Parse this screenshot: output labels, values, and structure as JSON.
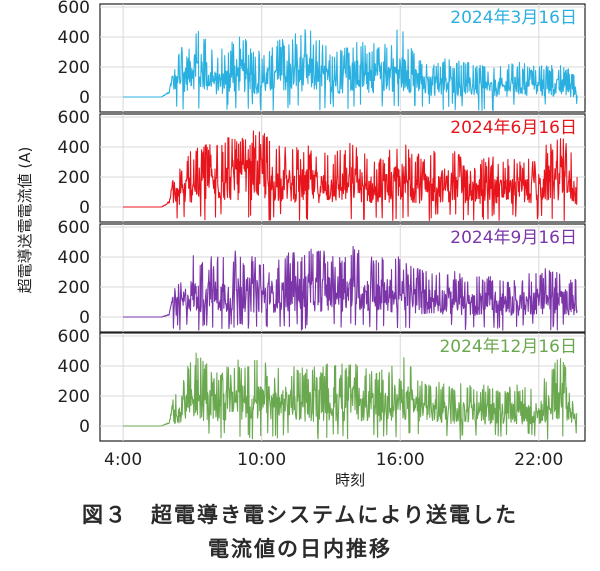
{
  "chart_data": {
    "type": "line",
    "xlabel": "時刻",
    "ylabel": "超電導送電電流値 (A)",
    "xticks": [
      "4:00",
      "10:00",
      "16:00",
      "22:00"
    ],
    "xlim": [
      "3:00",
      "24:00"
    ],
    "yticks": [
      0,
      200,
      400,
      600
    ],
    "ylim": [
      -100,
      620
    ],
    "grid": true,
    "panels": [
      {
        "title": "2024年3月16日",
        "color": "#2ab0e0",
        "x": [
          "4:00",
          "5:40",
          "6:00",
          "6:10",
          "7:00",
          "8:00",
          "9:00",
          "10:00",
          "11:00",
          "12:00",
          "13:00",
          "14:00",
          "15:00",
          "16:00",
          "17:00",
          "18:00",
          "19:00",
          "20:00",
          "21:00",
          "22:00",
          "23:00",
          "23:40"
        ],
        "values": [
          0,
          0,
          40,
          200,
          560,
          290,
          420,
          300,
          410,
          460,
          310,
          400,
          360,
          470,
          240,
          260,
          230,
          210,
          240,
          210,
          220,
          150
        ]
      },
      {
        "title": "2024年6月16日",
        "color": "#e8141c",
        "x": [
          "4:00",
          "5:40",
          "6:00",
          "6:10",
          "7:00",
          "8:00",
          "9:00",
          "10:00",
          "11:00",
          "12:00",
          "13:00",
          "14:00",
          "15:00",
          "16:00",
          "17:00",
          "18:00",
          "19:00",
          "20:00",
          "21:00",
          "22:00",
          "23:00",
          "23:40"
        ],
        "values": [
          0,
          0,
          40,
          200,
          400,
          450,
          500,
          520,
          400,
          410,
          360,
          450,
          300,
          470,
          350,
          420,
          300,
          340,
          320,
          360,
          530,
          260
        ]
      },
      {
        "title": "2024年9月16日",
        "color": "#7b35a8",
        "x": [
          "4:00",
          "5:40",
          "6:00",
          "6:10",
          "7:00",
          "8:00",
          "9:00",
          "10:00",
          "11:00",
          "12:00",
          "13:00",
          "14:00",
          "15:00",
          "16:00",
          "17:00",
          "18:00",
          "19:00",
          "20:00",
          "21:00",
          "22:00",
          "23:00",
          "23:40"
        ],
        "values": [
          0,
          0,
          20,
          180,
          420,
          400,
          450,
          380,
          420,
          470,
          430,
          480,
          410,
          400,
          310,
          330,
          260,
          290,
          250,
          330,
          330,
          240
        ]
      },
      {
        "title": "2024年12月16日",
        "color": "#6aa84f",
        "x": [
          "4:00",
          "5:40",
          "6:00",
          "6:10",
          "7:00",
          "8:00",
          "9:00",
          "10:00",
          "11:00",
          "12:00",
          "13:00",
          "14:00",
          "15:00",
          "16:00",
          "17:00",
          "18:00",
          "19:00",
          "20:00",
          "21:00",
          "22:00",
          "23:00",
          "23:40"
        ],
        "values": [
          0,
          0,
          30,
          180,
          520,
          350,
          480,
          430,
          420,
          390,
          420,
          420,
          350,
          500,
          300,
          290,
          310,
          260,
          290,
          260,
          520,
          180
        ]
      }
    ]
  },
  "caption": {
    "line1": "図３　超電導き電システムにより送電した",
    "line2": "電流値の日内推移"
  }
}
